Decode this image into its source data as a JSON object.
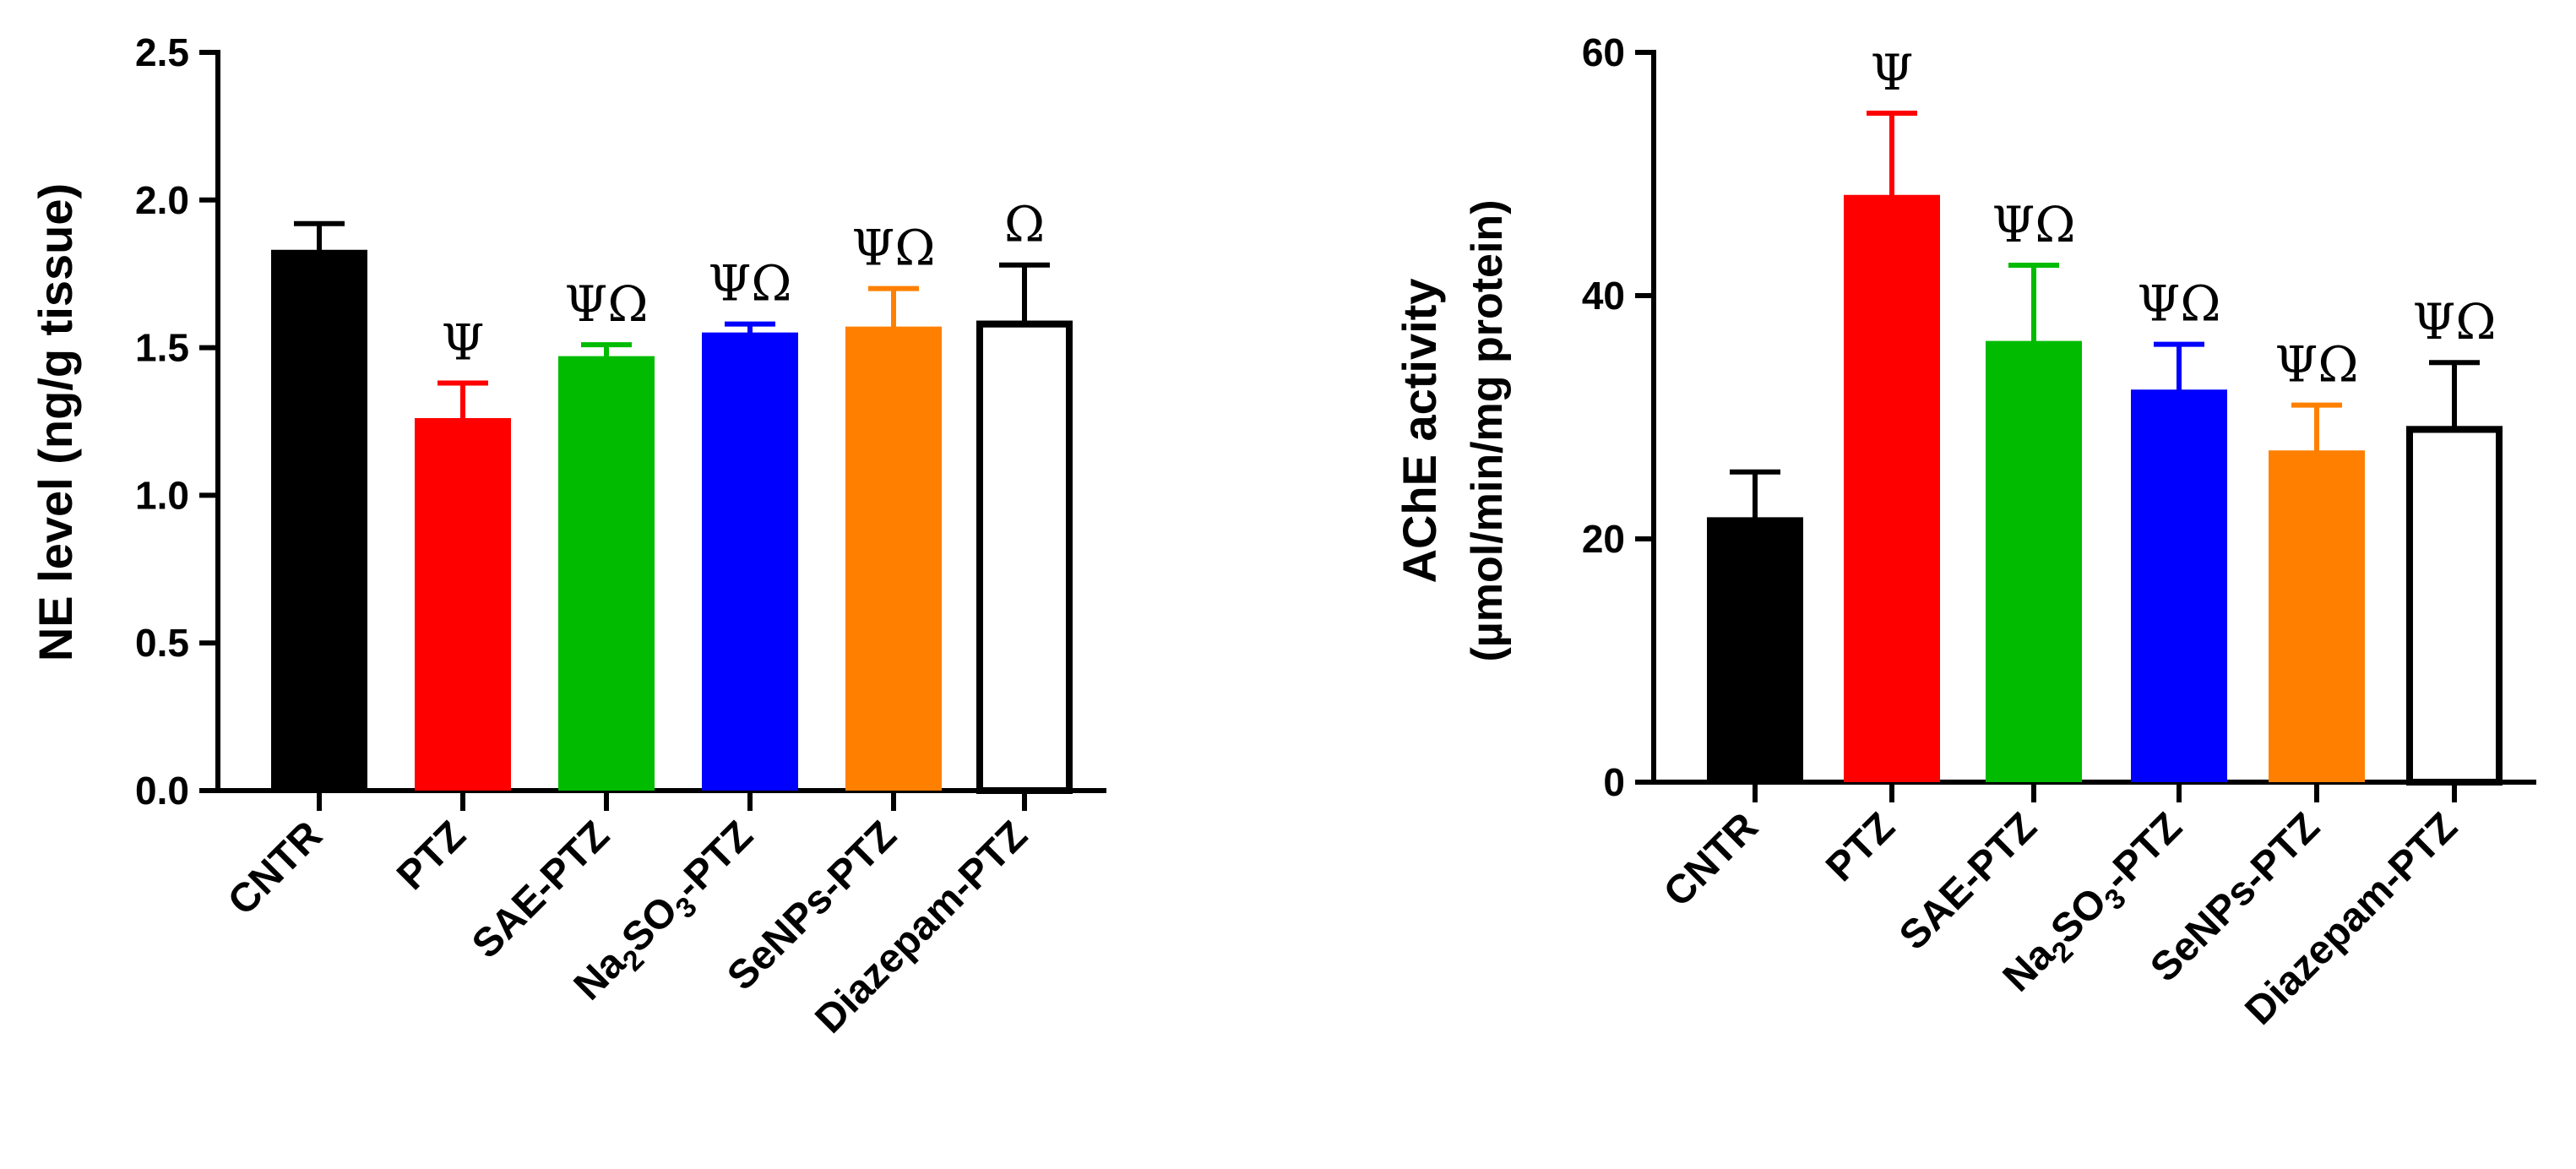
{
  "chart_data": [
    {
      "type": "bar",
      "ylabel": "NE level (ng/g tissue)",
      "ylim": [
        0,
        2.5
      ],
      "yticks": [
        "0.0",
        "0.5",
        "1.0",
        "1.5",
        "2.0",
        "2.5"
      ],
      "categories": [
        "CNTR",
        "PTZ",
        "SAE-PTZ",
        "Na2SO3-PTZ",
        "SeNPs-PTZ",
        "Diazepam-PTZ"
      ],
      "values": [
        1.82,
        1.25,
        1.46,
        1.54,
        1.56,
        1.58
      ],
      "errors": [
        0.1,
        0.13,
        0.05,
        0.04,
        0.14,
        0.2
      ],
      "significance": [
        "",
        "Ψ",
        "ΨΩ",
        "ΨΩ",
        "ΨΩ",
        "Ω"
      ],
      "colors": [
        "#000000",
        "#ff0000",
        "#00bb00",
        "#0000ff",
        "#ff8000",
        "#ffffff"
      ],
      "grid": false
    },
    {
      "type": "bar",
      "ylabel": "AChE activity",
      "ylabel2": "(µmol/min/mg protein)",
      "ylim": [
        0,
        60
      ],
      "yticks": [
        "0",
        "20",
        "40",
        "60"
      ],
      "categories": [
        "CNTR",
        "PTZ",
        "SAE-PTZ",
        "Na2SO3-PTZ",
        "SeNPs-PTZ",
        "Diazepam-PTZ"
      ],
      "values": [
        21.5,
        48,
        36,
        32,
        27,
        29
      ],
      "errors": [
        4,
        7,
        6.5,
        4,
        4,
        5.5
      ],
      "significance": [
        "",
        "Ψ",
        "ΨΩ",
        "ΨΩ",
        "ΨΩ",
        "ΨΩ"
      ],
      "colors": [
        "#000000",
        "#ff0000",
        "#00bb00",
        "#0000ff",
        "#ff8000",
        "#ffffff"
      ],
      "grid": false
    }
  ]
}
